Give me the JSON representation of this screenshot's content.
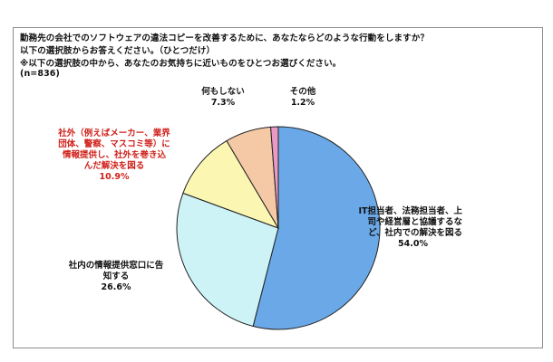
{
  "header": {
    "question_line1": "勤務先の会社でのソフトウェアの違法コピーを改善するために、あなたならどのような行動をしますか？",
    "question_line2": "以下の選択肢からお答えください。（ひとつだけ）",
    "question_line3": "※以下の選択肢の中から、あなたのお気持ちに近いものをひとつお選びください。",
    "sample_size": "(n=836)"
  },
  "chart_data": {
    "type": "pie",
    "title": "",
    "start_angle_deg": 0,
    "direction": "clockwise",
    "slices": [
      {
        "label_lines": [
          "IT担当者、法務担当者、上",
          "司や経営層と協議するな",
          "ど、社内での解決を図る"
        ],
        "value": 54.0,
        "value_text": "54.0%",
        "color": "#6aa8e8",
        "label_color": "#111111"
      },
      {
        "label_lines": [
          "社内の情報提供窓口に告",
          "知する"
        ],
        "value": 26.6,
        "value_text": "26.6%",
        "color": "#cdf3f7",
        "label_color": "#111111"
      },
      {
        "label_lines": [
          "社外（例えばメーカー、業界",
          "団体、警察、マスコミ等）に",
          "情報提供し、社外を巻き込",
          "んだ解決を図る"
        ],
        "value": 10.9,
        "value_text": "10.9%",
        "color": "#fbf7b3",
        "label_color": "#d0201a"
      },
      {
        "label_lines": [
          "何もしない"
        ],
        "value": 7.3,
        "value_text": "7.3%",
        "color": "#f5c9a6",
        "label_color": "#111111"
      },
      {
        "label_lines": [
          "その他"
        ],
        "value": 1.2,
        "value_text": "1.2%",
        "color": "#e89ac4",
        "label_color": "#111111"
      }
    ]
  }
}
